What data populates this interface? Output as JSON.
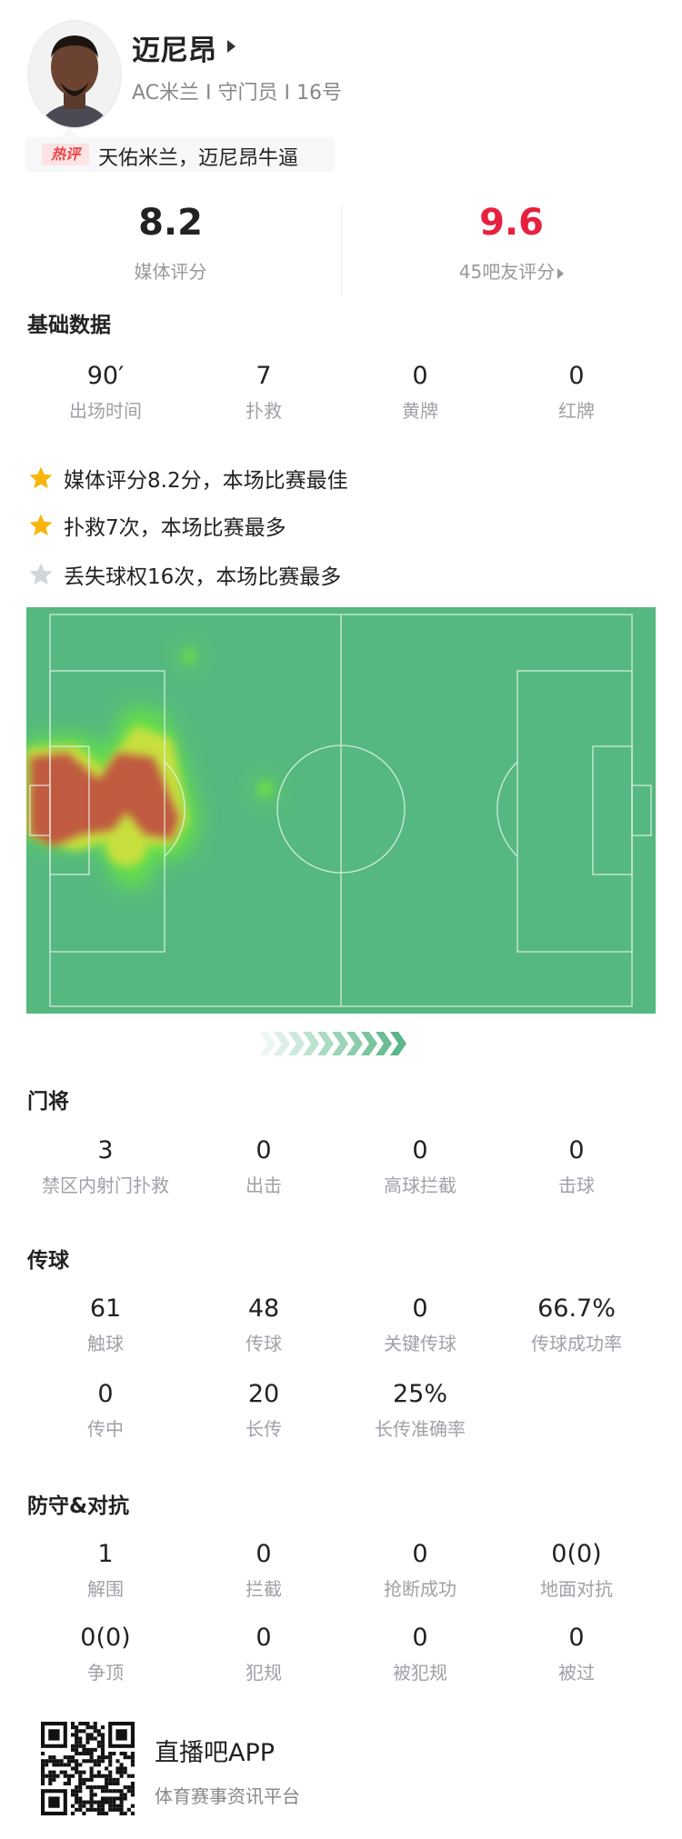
{
  "player": {
    "name": "迈尼昂",
    "subtitle": "AC米兰 I 守门员 I 16号",
    "hot_comment_tag": "热评",
    "hot_comment": "天佑米兰，迈尼昂牛逼"
  },
  "ratings": {
    "media_value": "8.2",
    "media_label": "媒体评分",
    "fan_value": "9.6",
    "fan_label": "45吧友评分",
    "fan_color": "#e8203f"
  },
  "basic": {
    "title": "基础数据",
    "stats": [
      {
        "value": "90′",
        "label": "出场时间"
      },
      {
        "value": "7",
        "label": "扑救"
      },
      {
        "value": "0",
        "label": "黄牌"
      },
      {
        "value": "0",
        "label": "红牌"
      }
    ]
  },
  "highlights": [
    {
      "icon": "star-gold-icon",
      "text": "媒体评分8.2分，本场比赛最佳"
    },
    {
      "icon": "star-gold-icon",
      "text": "扑救7次，本场比赛最多"
    },
    {
      "icon": "star-gray-icon",
      "text": "丢失球权16次，本场比赛最多"
    }
  ],
  "heatmap": {
    "pitch_color": "#55b880",
    "attack_direction": "right"
  },
  "goalkeeping": {
    "title": "门将",
    "stats": [
      {
        "value": "3",
        "label": "禁区内射门扑救"
      },
      {
        "value": "0",
        "label": "出击"
      },
      {
        "value": "0",
        "label": "高球拦截"
      },
      {
        "value": "0",
        "label": "击球"
      }
    ]
  },
  "passing": {
    "title": "传球",
    "stats": [
      {
        "value": "61",
        "label": "触球"
      },
      {
        "value": "48",
        "label": "传球"
      },
      {
        "value": "0",
        "label": "关键传球"
      },
      {
        "value": "66.7%",
        "label": "传球成功率"
      },
      {
        "value": "0",
        "label": "传中"
      },
      {
        "value": "20",
        "label": "长传"
      },
      {
        "value": "25%",
        "label": "长传准确率"
      }
    ]
  },
  "defense": {
    "title": "防守&对抗",
    "stats": [
      {
        "value": "1",
        "label": "解围"
      },
      {
        "value": "0",
        "label": "拦截"
      },
      {
        "value": "0",
        "label": "抢断成功"
      },
      {
        "value": "0(0)",
        "label": "地面对抗"
      },
      {
        "value": "0(0)",
        "label": "争顶"
      },
      {
        "value": "0",
        "label": "犯规"
      },
      {
        "value": "0",
        "label": "被犯规"
      },
      {
        "value": "0",
        "label": "被过"
      }
    ]
  },
  "footer": {
    "app_name": "直播吧APP",
    "app_tagline": "体育赛事资讯平台"
  }
}
